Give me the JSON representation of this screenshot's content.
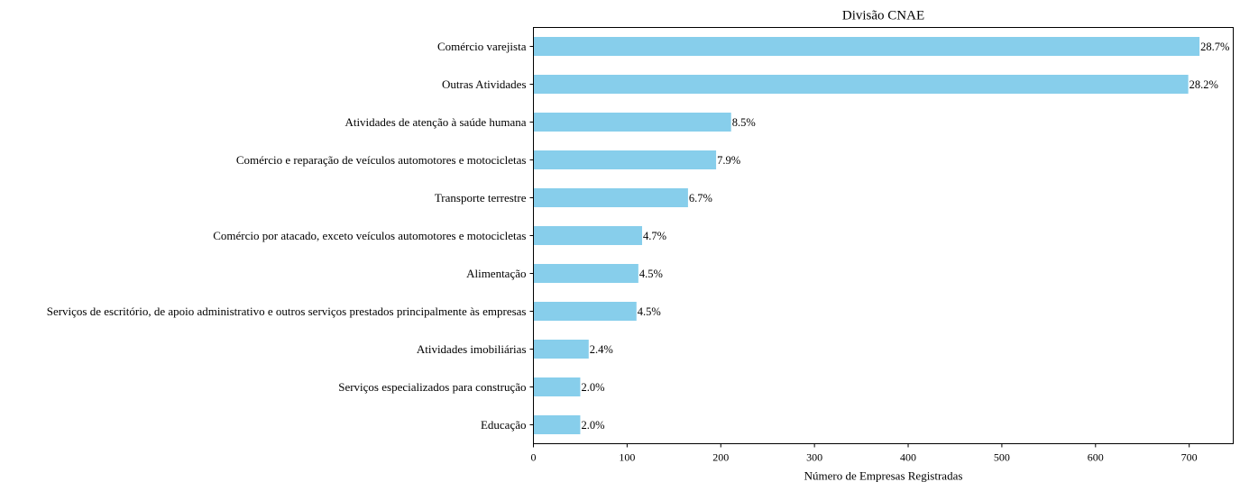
{
  "chart_data": {
    "type": "bar",
    "orientation": "horizontal",
    "title": "Divisão CNAE",
    "xlabel": "Número de Empresas Registradas",
    "ylabel": "",
    "xlim": [
      0,
      747
    ],
    "xticks": [
      0,
      100,
      200,
      300,
      400,
      500,
      600,
      700
    ],
    "grid": false,
    "legend": "none",
    "bar_color": "#87CEEB",
    "categories": [
      "Comércio varejista",
      "Outras Atividades",
      "Atividades de atenção à saúde humana",
      "Comércio e reparação de veículos automotores e motocicletas",
      "Transporte terrestre",
      "Comércio por atacado, exceto veículos automotores e motocicletas",
      "Alimentação",
      "Serviços de escritório, de apoio administrativo e outros serviços prestados principalmente às empresas",
      "Atividades imobiliárias",
      "Serviços especializados para construção",
      "Educação"
    ],
    "values": [
      711,
      699,
      211,
      195,
      165,
      116,
      112,
      110,
      59,
      50,
      50
    ],
    "labels": [
      "28.7%",
      "28.2%",
      "8.5%",
      "7.9%",
      "6.7%",
      "4.7%",
      "4.5%",
      "4.5%",
      "2.4%",
      "2.0%",
      "2.0%"
    ]
  }
}
